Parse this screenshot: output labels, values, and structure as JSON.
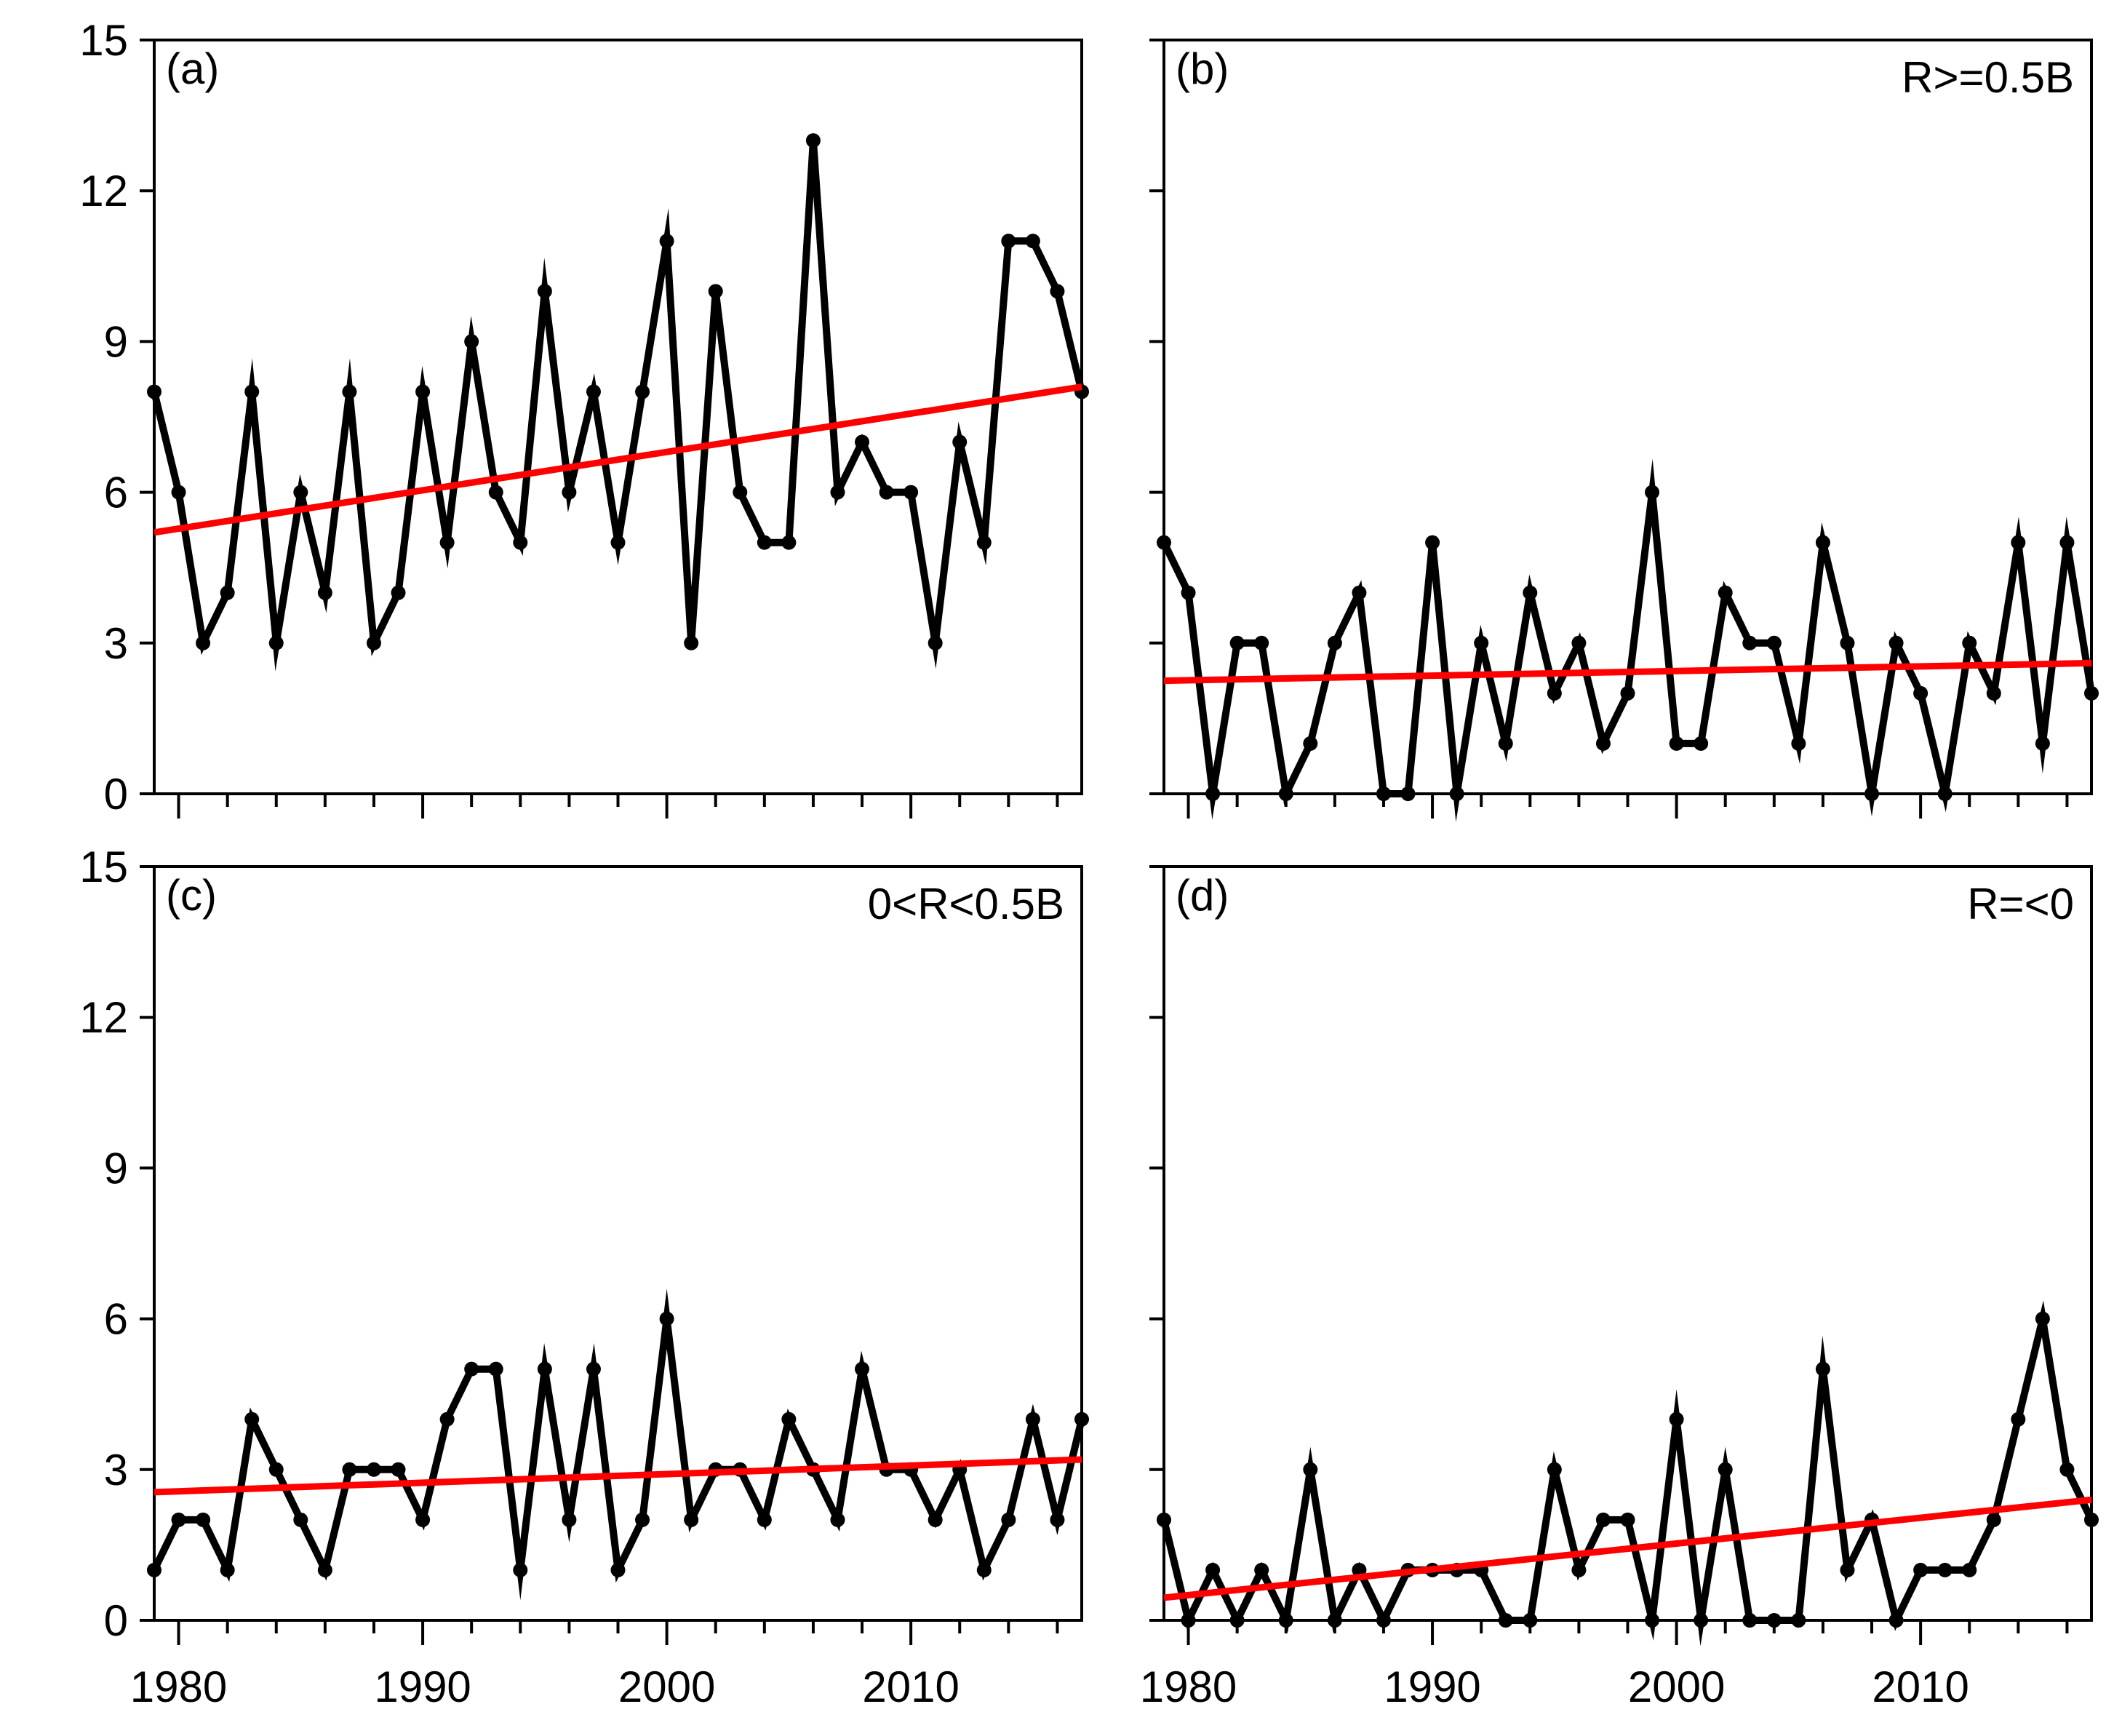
{
  "chart_data": [
    {
      "id": "a",
      "type": "line",
      "label": "(a)",
      "condition": "",
      "x": [
        1979,
        1980,
        1981,
        1982,
        1983,
        1984,
        1985,
        1986,
        1987,
        1988,
        1989,
        1990,
        1991,
        1992,
        1993,
        1994,
        1995,
        1996,
        1997,
        1998,
        1999,
        2000,
        2001,
        2002,
        2003,
        2004,
        2005,
        2006,
        2007,
        2008,
        2009,
        2010,
        2011,
        2012,
        2013,
        2014,
        2015,
        2016,
        2017
      ],
      "values": [
        8,
        6,
        3,
        4,
        8,
        3,
        6,
        4,
        8,
        3,
        4,
        8,
        5,
        9,
        6,
        5,
        10,
        6,
        8,
        5,
        8,
        11,
        3,
        10,
        6,
        5,
        5,
        13,
        6,
        7,
        6,
        6,
        3,
        7,
        5,
        11,
        11,
        10,
        8
      ],
      "trend": [
        5.2,
        8.1
      ],
      "xlim": [
        1979,
        2017
      ],
      "ylim": [
        0,
        15
      ],
      "xticks": [
        "1980",
        "1990",
        "2000",
        "2010"
      ],
      "yticks": [
        "0",
        "3",
        "6",
        "9",
        "12",
        "15"
      ],
      "line_color": "#000000",
      "trend_color": "#ff0000"
    },
    {
      "id": "b",
      "type": "line",
      "label": "(b)",
      "condition": "R>=0.5B",
      "x": [
        1979,
        1980,
        1981,
        1982,
        1983,
        1984,
        1985,
        1986,
        1987,
        1988,
        1989,
        1990,
        1991,
        1992,
        1993,
        1994,
        1995,
        1996,
        1997,
        1998,
        1999,
        2000,
        2001,
        2002,
        2003,
        2004,
        2005,
        2006,
        2007,
        2008,
        2009,
        2010,
        2011,
        2012,
        2013,
        2014,
        2015,
        2016,
        2017
      ],
      "values": [
        5,
        4,
        0,
        3,
        3,
        0,
        1,
        3,
        4,
        0,
        0,
        5,
        0,
        3,
        1,
        4,
        2,
        3,
        1,
        2,
        6,
        1,
        1,
        4,
        3,
        3,
        1,
        5,
        3,
        0,
        3,
        2,
        0,
        3,
        2,
        5,
        1,
        5,
        2
      ],
      "trend": [
        2.25,
        2.6
      ],
      "xlim": [
        1979,
        2017
      ],
      "ylim": [
        0,
        15
      ],
      "xticks": [
        "1980",
        "1990",
        "2000",
        "2010"
      ],
      "yticks": [
        "0",
        "3",
        "6",
        "9",
        "12",
        "15"
      ],
      "line_color": "#000000",
      "trend_color": "#ff0000"
    },
    {
      "id": "c",
      "type": "line",
      "label": "(c)",
      "condition": "0<R<0.5B",
      "x": [
        1979,
        1980,
        1981,
        1982,
        1983,
        1984,
        1985,
        1986,
        1987,
        1988,
        1989,
        1990,
        1991,
        1992,
        1993,
        1994,
        1995,
        1996,
        1997,
        1998,
        1999,
        2000,
        2001,
        2002,
        2003,
        2004,
        2005,
        2006,
        2007,
        2008,
        2009,
        2010,
        2011,
        2012,
        2013,
        2014,
        2015,
        2016,
        2017
      ],
      "values": [
        1,
        2,
        2,
        1,
        4,
        3,
        2,
        1,
        3,
        3,
        3,
        2,
        4,
        5,
        5,
        1,
        5,
        2,
        5,
        1,
        2,
        6,
        2,
        3,
        3,
        2,
        4,
        3,
        2,
        5,
        3,
        3,
        2,
        3,
        1,
        2,
        4,
        2,
        4
      ],
      "trend": [
        2.55,
        3.2
      ],
      "xlim": [
        1979,
        2017
      ],
      "ylim": [
        0,
        15
      ],
      "xticks": [
        "1980",
        "1990",
        "2000",
        "2010"
      ],
      "yticks": [
        "0",
        "3",
        "6",
        "9",
        "12",
        "15"
      ],
      "line_color": "#000000",
      "trend_color": "#ff0000"
    },
    {
      "id": "d",
      "type": "line",
      "label": "(d)",
      "condition": "R=<0",
      "x": [
        1979,
        1980,
        1981,
        1982,
        1983,
        1984,
        1985,
        1986,
        1987,
        1988,
        1989,
        1990,
        1991,
        1992,
        1993,
        1994,
        1995,
        1996,
        1997,
        1998,
        1999,
        2000,
        2001,
        2002,
        2003,
        2004,
        2005,
        2006,
        2007,
        2008,
        2009,
        2010,
        2011,
        2012,
        2013,
        2014,
        2015,
        2016,
        2017
      ],
      "values": [
        2,
        0,
        1,
        0,
        1,
        0,
        3,
        0,
        1,
        0,
        1,
        1,
        1,
        1,
        0,
        0,
        3,
        1,
        2,
        2,
        0,
        4,
        0,
        3,
        0,
        0,
        0,
        5,
        1,
        2,
        0,
        1,
        1,
        1,
        2,
        4,
        6,
        3,
        2
      ],
      "trend": [
        0.45,
        2.4
      ],
      "xlim": [
        1979,
        2017
      ],
      "ylim": [
        0,
        15
      ],
      "xticks": [
        "1980",
        "1990",
        "2000",
        "2010"
      ],
      "yticks": [
        "0",
        "3",
        "6",
        "9",
        "12",
        "15"
      ],
      "line_color": "#000000",
      "trend_color": "#ff0000"
    }
  ]
}
